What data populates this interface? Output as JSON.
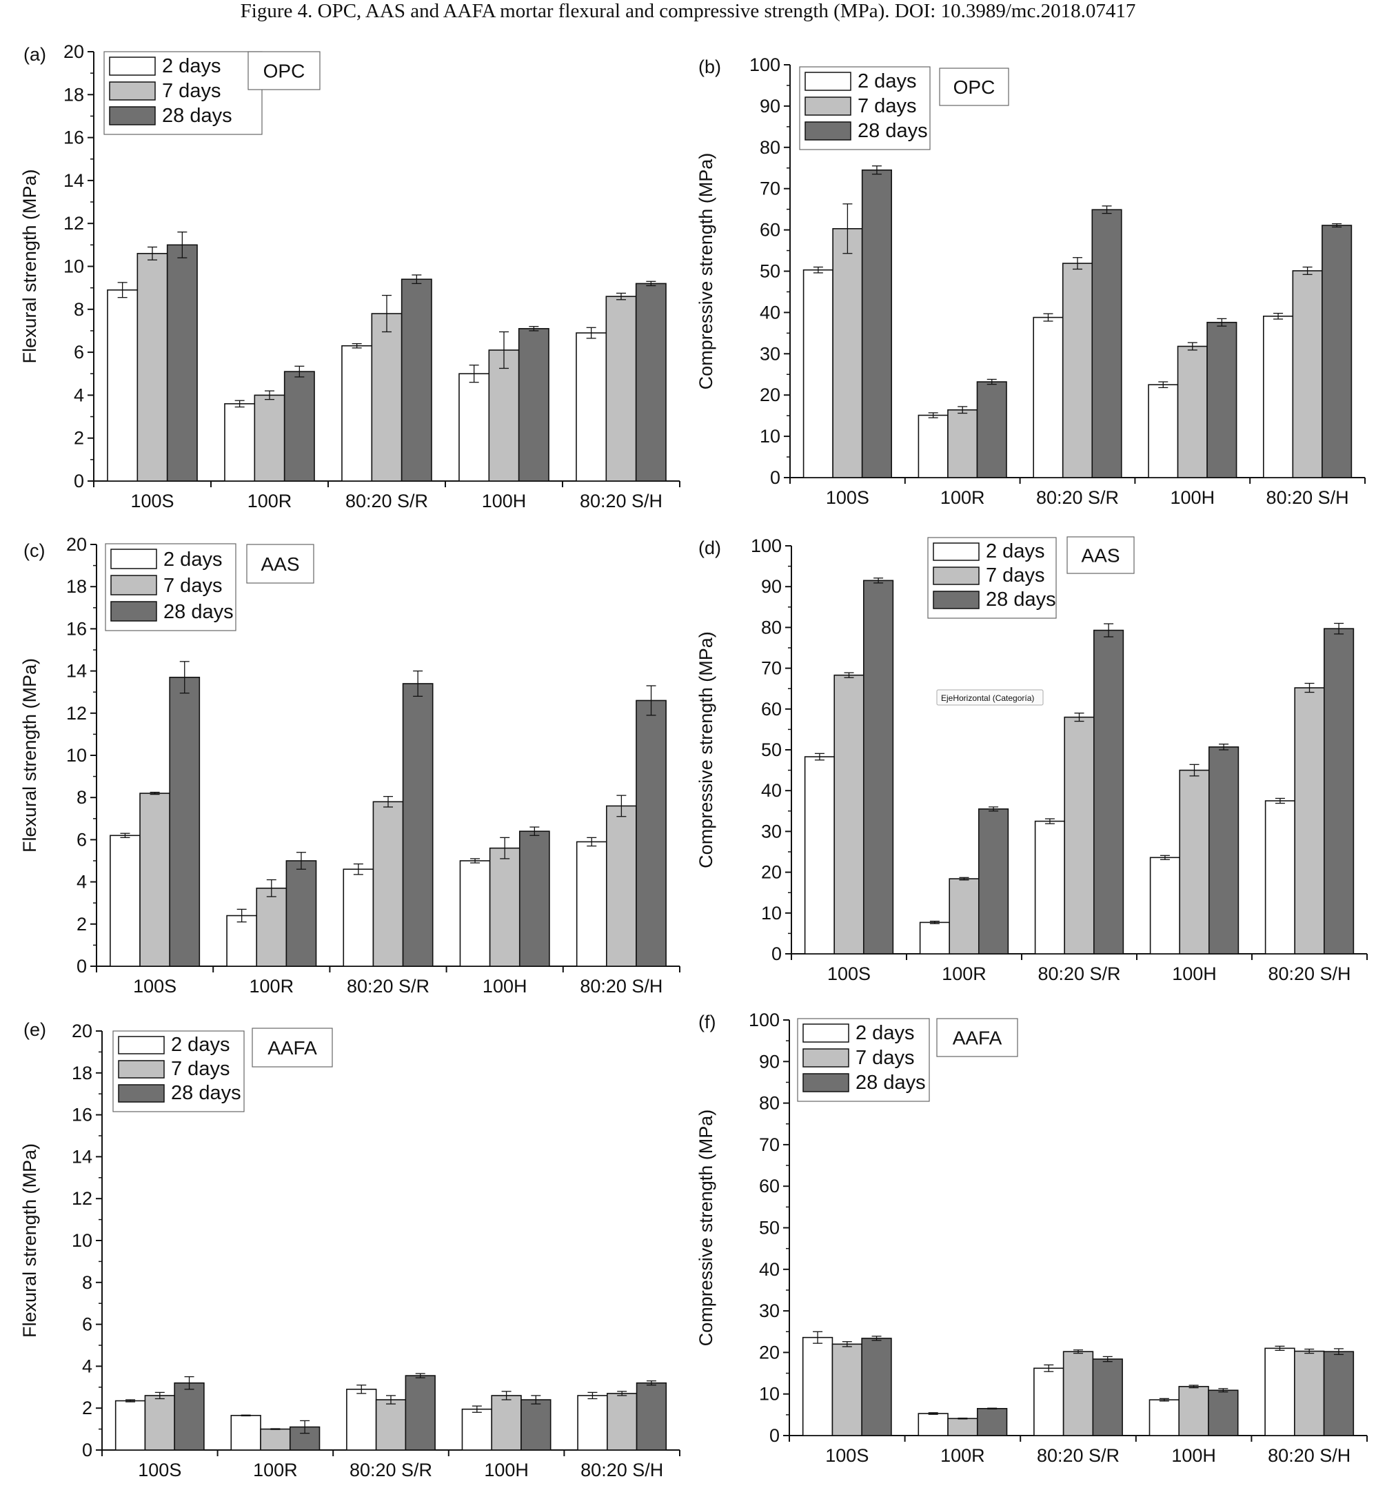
{
  "figure": {
    "caption": "Figure 4. OPC, AAS and AAFA mortar flexural and compressive strength (MPa). DOI: 10.3989/mc.2018.07417",
    "annotation": "EjeHorizontal (Categoría)"
  },
  "colors": {
    "2 days": "#ffffff",
    "7 days": "#c0c0c0",
    "28 days": "#707070",
    "axis": "#111111"
  },
  "chart_data": [
    {
      "id": "a",
      "panel_label": "(a)",
      "binder": "OPC",
      "type": "bar",
      "ylabel": "Flexural strength (MPa)",
      "xlabel": "",
      "ylim": [
        0,
        20
      ],
      "y_major_step": 2,
      "categories": [
        "100S",
        "100R",
        "80:20 S/R",
        "100H",
        "80:20 S/H"
      ],
      "legend": {
        "placement": "top-left"
      },
      "series": [
        {
          "name": "2 days",
          "values": [
            8.9,
            3.6,
            6.3,
            5.0,
            6.9
          ],
          "errors": [
            0.35,
            0.15,
            0.1,
            0.4,
            0.25
          ]
        },
        {
          "name": "7 days",
          "values": [
            10.6,
            4.0,
            7.8,
            6.1,
            8.6
          ],
          "errors": [
            0.3,
            0.2,
            0.85,
            0.85,
            0.15
          ]
        },
        {
          "name": "28 days",
          "values": [
            11.0,
            5.1,
            9.4,
            7.1,
            9.2
          ],
          "errors": [
            0.6,
            0.25,
            0.2,
            0.1,
            0.1
          ]
        }
      ]
    },
    {
      "id": "b",
      "panel_label": "(b)",
      "binder": "OPC",
      "type": "bar",
      "ylabel": "Compressive strength (MPa)",
      "xlabel": "",
      "ylim": [
        0,
        100
      ],
      "y_major_step": 10,
      "categories": [
        "100S",
        "100R",
        "80:20 S/R",
        "100H",
        "80:20 S/H"
      ],
      "legend": {
        "placement": "top-left"
      },
      "series": [
        {
          "name": "2 days",
          "values": [
            50.3,
            15.1,
            38.8,
            22.5,
            39.1
          ],
          "errors": [
            0.7,
            0.6,
            0.9,
            0.7,
            0.7
          ]
        },
        {
          "name": "7 days",
          "values": [
            60.3,
            16.4,
            51.9,
            31.8,
            50.1
          ],
          "errors": [
            6.0,
            0.8,
            1.4,
            0.9,
            0.9
          ]
        },
        {
          "name": "28 days",
          "values": [
            74.5,
            23.2,
            64.9,
            37.6,
            61.1
          ],
          "errors": [
            1.0,
            0.6,
            0.9,
            0.9,
            0.4
          ]
        }
      ]
    },
    {
      "id": "c",
      "panel_label": "(c)",
      "binder": "AAS",
      "type": "bar",
      "ylabel": "Flexural strength (MPa)",
      "xlabel": "",
      "ylim": [
        0,
        20
      ],
      "y_major_step": 2,
      "categories": [
        "100S",
        "100R",
        "80:20 S/R",
        "100H",
        "80:20 S/H"
      ],
      "legend": {
        "placement": "top-left"
      },
      "series": [
        {
          "name": "2 days",
          "values": [
            6.2,
            2.4,
            4.6,
            5.0,
            5.9
          ],
          "errors": [
            0.1,
            0.3,
            0.25,
            0.1,
            0.2
          ]
        },
        {
          "name": "7 days",
          "values": [
            8.2,
            3.7,
            7.8,
            5.6,
            7.6
          ],
          "errors": [
            0.05,
            0.4,
            0.25,
            0.5,
            0.5
          ]
        },
        {
          "name": "28 days",
          "values": [
            13.7,
            5.0,
            13.4,
            6.4,
            12.6
          ],
          "errors": [
            0.75,
            0.4,
            0.6,
            0.2,
            0.7
          ]
        }
      ]
    },
    {
      "id": "d",
      "panel_label": "(d)",
      "binder": "AAS",
      "type": "bar",
      "ylabel": "Compressive strength (MPa)",
      "xlabel": "",
      "ylim": [
        0,
        100
      ],
      "y_major_step": 10,
      "categories": [
        "100S",
        "100R",
        "80:20 S/R",
        "100H",
        "80:20 S/H"
      ],
      "legend": {
        "placement": "top-center"
      },
      "series": [
        {
          "name": "2 days",
          "values": [
            48.3,
            7.7,
            32.5,
            23.6,
            37.5
          ],
          "errors": [
            0.8,
            0.3,
            0.6,
            0.5,
            0.6
          ]
        },
        {
          "name": "7 days",
          "values": [
            68.3,
            18.4,
            58.0,
            45.0,
            65.2
          ],
          "errors": [
            0.6,
            0.3,
            1.0,
            1.4,
            1.1
          ]
        },
        {
          "name": "28 days",
          "values": [
            91.5,
            35.5,
            79.3,
            50.7,
            79.7
          ],
          "errors": [
            0.6,
            0.5,
            1.6,
            0.7,
            1.3
          ]
        }
      ]
    },
    {
      "id": "e",
      "panel_label": "(e)",
      "binder": "AAFA",
      "type": "bar",
      "ylabel": "Flexural strength (MPa)",
      "xlabel": "",
      "ylim": [
        0,
        20
      ],
      "y_major_step": 2,
      "categories": [
        "100S",
        "100R",
        "80:20 S/R",
        "100H",
        "80:20 S/H"
      ],
      "legend": {
        "placement": "top-left"
      },
      "series": [
        {
          "name": "2 days",
          "values": [
            2.35,
            1.65,
            2.9,
            1.95,
            2.6
          ],
          "errors": [
            0.05,
            0.02,
            0.2,
            0.15,
            0.15
          ]
        },
        {
          "name": "7 days",
          "values": [
            2.6,
            1.0,
            2.4,
            2.6,
            2.7
          ],
          "errors": [
            0.15,
            0.02,
            0.2,
            0.2,
            0.1
          ]
        },
        {
          "name": "28 days",
          "values": [
            3.2,
            1.1,
            3.55,
            2.4,
            3.2
          ],
          "errors": [
            0.3,
            0.3,
            0.1,
            0.2,
            0.1
          ]
        }
      ]
    },
    {
      "id": "f",
      "panel_label": "(f)",
      "binder": "AAFA",
      "type": "bar",
      "ylabel": "Compressive strength (MPa)",
      "xlabel": "",
      "ylim": [
        0,
        100
      ],
      "y_major_step": 10,
      "categories": [
        "100S",
        "100R",
        "80:20 S/R",
        "100H",
        "80:20 S/H"
      ],
      "legend": {
        "placement": "top-left"
      },
      "series": [
        {
          "name": "2 days",
          "values": [
            23.6,
            5.3,
            16.2,
            8.6,
            21.0
          ],
          "errors": [
            1.4,
            0.2,
            0.8,
            0.3,
            0.5
          ]
        },
        {
          "name": "7 days",
          "values": [
            22.0,
            4.1,
            20.2,
            11.8,
            20.3
          ],
          "errors": [
            0.6,
            0.1,
            0.4,
            0.3,
            0.5
          ]
        },
        {
          "name": "28 days",
          "values": [
            23.4,
            6.5,
            18.4,
            10.9,
            20.2
          ],
          "errors": [
            0.5,
            0.1,
            0.6,
            0.4,
            0.7
          ]
        }
      ]
    }
  ]
}
